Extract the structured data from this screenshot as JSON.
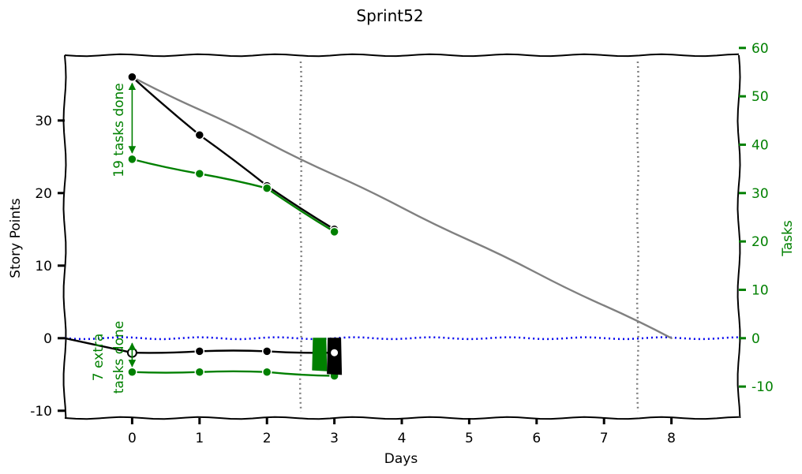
{
  "chart_data": {
    "type": "line",
    "title": "Sprint52",
    "xlabel": "Days",
    "ylabel": "Story Points",
    "y2label": "Tasks",
    "xlim": [
      -1,
      9
    ],
    "ylim": [
      -11,
      39
    ],
    "y2lim": [
      -16.5,
      58.5
    ],
    "xticks": [
      "0",
      "1",
      "2",
      "3",
      "4",
      "5",
      "6",
      "7",
      "8"
    ],
    "yticks": [
      "-10",
      "0",
      "10",
      "20",
      "30"
    ],
    "y2ticks": [
      "-10",
      "0",
      "10",
      "20",
      "30",
      "40",
      "50",
      "60"
    ],
    "grid": false,
    "colors": {
      "points": "#000000",
      "tasks": "#008000",
      "ideal": "#808080",
      "zero": "#0000ee",
      "marker": "#808080"
    },
    "vlines": [
      2.5,
      7.5
    ],
    "series": [
      {
        "role": "ideal",
        "x": [
          0,
          1,
          2,
          3,
          4,
          5,
          6,
          7,
          8
        ],
        "y": [
          36,
          31.5,
          27,
          22.5,
          18,
          13.5,
          9,
          4.5,
          0
        ]
      },
      {
        "role": "points",
        "x": [
          0,
          1,
          2,
          3
        ],
        "y": [
          36,
          28,
          21,
          15
        ]
      },
      {
        "role": "tasks",
        "axis": "y2",
        "x": [
          0,
          1,
          2,
          3
        ],
        "y": [
          37,
          34,
          31,
          22
        ]
      },
      {
        "role": "points-extra",
        "x": [
          0,
          1,
          2,
          3
        ],
        "y": [
          -2,
          -1.8,
          -1.8,
          -2
        ]
      },
      {
        "role": "tasks-extra",
        "axis": "y2",
        "x": [
          0,
          1,
          2,
          3
        ],
        "y": [
          -7,
          -7,
          -7,
          -7.8
        ]
      }
    ],
    "bars": [
      {
        "x": 2.78,
        "from": 0,
        "to": -4.5,
        "color": "#008000"
      },
      {
        "x": 3.0,
        "from": 0,
        "to": -5,
        "color": "#000000"
      }
    ],
    "annotations": [
      {
        "line1": "19 tasks done",
        "line2": ""
      },
      {
        "line1": "7 extra",
        "line2": "tasks done"
      }
    ]
  }
}
